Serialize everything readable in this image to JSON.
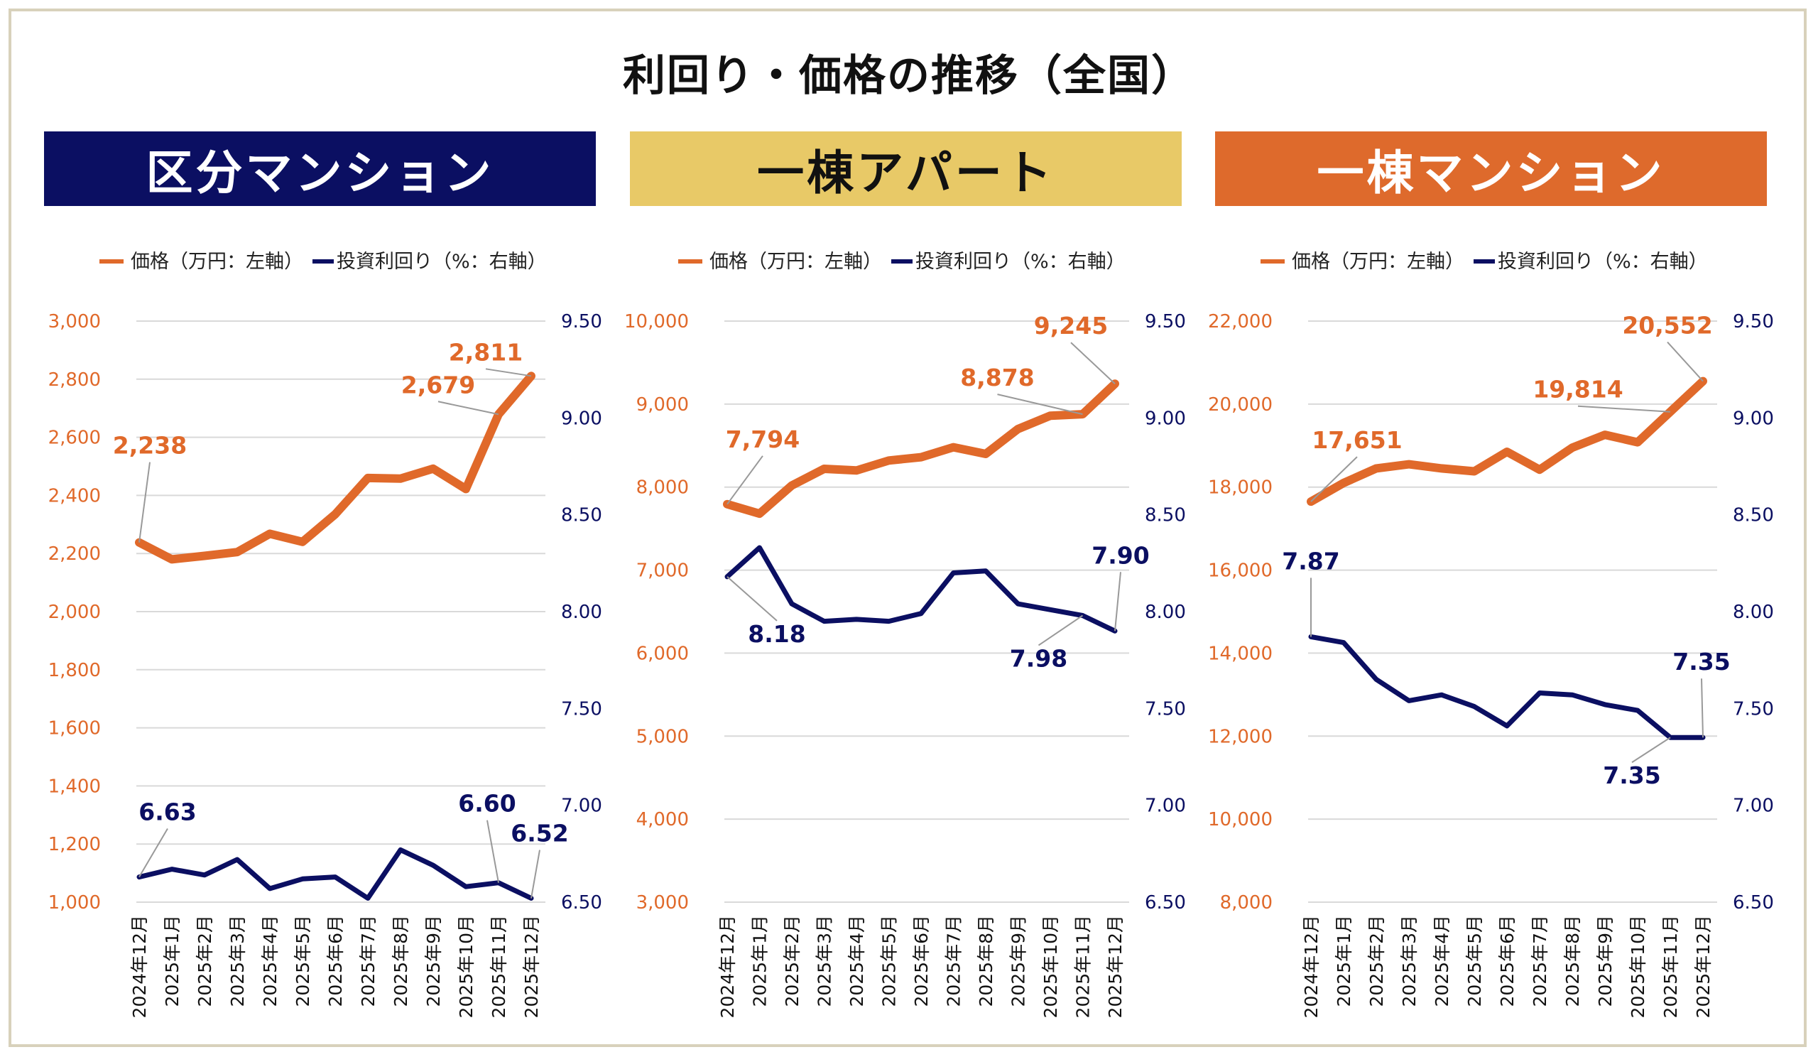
{
  "title": "利回り・価格の推移（全国）",
  "colors": {
    "price": "#E0692A",
    "yield": "#0B0F62",
    "grid": "#d9d9d9",
    "frame": "#d8d1bb"
  },
  "chart_data": [
    {
      "type": "line",
      "panel_title": "区分マンション",
      "banner_color": "#0B0F62",
      "banner_text_color": "#ffffff",
      "legend": [
        "価格（万円：左軸）",
        "投資利回り（%：右軸）"
      ],
      "categories": [
        "2024年12月",
        "2025年1月",
        "2025年2月",
        "2025年3月",
        "2025年4月",
        "2025年5月",
        "2025年6月",
        "2025年7月",
        "2025年8月",
        "2025年9月",
        "2025年10月",
        "2025年11月",
        "2025年12月"
      ],
      "left_axis": {
        "min": 1000,
        "max": 3000,
        "step": 200,
        "ticks": [
          "1,000",
          "1,200",
          "1,400",
          "1,600",
          "1,800",
          "2,000",
          "2,200",
          "2,400",
          "2,600",
          "2,800",
          "3,000"
        ]
      },
      "right_axis": {
        "min": 6.5,
        "max": 9.5,
        "step": 0.5,
        "ticks": [
          "6.50",
          "7.00",
          "7.50",
          "8.00",
          "8.50",
          "9.00",
          "9.50"
        ]
      },
      "series": [
        {
          "name": "価格（万円：左軸）",
          "axis": "left",
          "values": [
            2238,
            2180,
            2192,
            2205,
            2268,
            2240,
            2335,
            2460,
            2458,
            2492,
            2422,
            2679,
            2811
          ]
        },
        {
          "name": "投資利回り（%：右軸）",
          "axis": "right",
          "values": [
            6.63,
            6.67,
            6.64,
            6.72,
            6.57,
            6.62,
            6.63,
            6.52,
            6.77,
            6.69,
            6.58,
            6.6,
            6.52
          ]
        }
      ],
      "annotations": [
        {
          "series": 0,
          "index": 0,
          "text": "2,238",
          "dx": 15,
          "dy": -125
        },
        {
          "series": 0,
          "index": 11,
          "text": "2,679",
          "dx": -85,
          "dy": -30
        },
        {
          "series": 0,
          "index": 12,
          "text": "2,811",
          "dx": -64,
          "dy": -22
        },
        {
          "series": 1,
          "index": 0,
          "text": "6.63",
          "dx": 40,
          "dy": -80
        },
        {
          "series": 1,
          "index": 11,
          "text": "6.60",
          "dx": -16,
          "dy": -100
        },
        {
          "series": 1,
          "index": 12,
          "text": "6.52",
          "dx": 12,
          "dy": -80
        }
      ]
    },
    {
      "type": "line",
      "panel_title": "一棟アパート",
      "banner_color": "#E8C967",
      "banner_text_color": "#111111",
      "legend": [
        "価格（万円：左軸）",
        "投資利回り（%：右軸）"
      ],
      "categories": [
        "2024年12月",
        "2025年1月",
        "2025年2月",
        "2025年3月",
        "2025年4月",
        "2025年5月",
        "2025年6月",
        "2025年7月",
        "2025年8月",
        "2025年9月",
        "2025年10月",
        "2025年11月",
        "2025年12月"
      ],
      "left_axis": {
        "min": 3000,
        "max": 10000,
        "step": 1000,
        "ticks": [
          "3,000",
          "4,000",
          "5,000",
          "6,000",
          "7,000",
          "8,000",
          "9,000",
          "10,000"
        ]
      },
      "right_axis": {
        "min": 6.5,
        "max": 9.5,
        "step": 0.5,
        "ticks": [
          "6.50",
          "7.00",
          "7.50",
          "8.00",
          "8.50",
          "9.00",
          "9.50"
        ]
      },
      "series": [
        {
          "name": "価格（万円：左軸）",
          "axis": "left",
          "values": [
            7794,
            7680,
            8020,
            8220,
            8200,
            8320,
            8360,
            8480,
            8400,
            8700,
            8860,
            8878,
            9245
          ]
        },
        {
          "name": "投資利回り（%：右軸）",
          "axis": "right",
          "values": [
            8.18,
            8.33,
            8.04,
            7.95,
            7.96,
            7.95,
            7.99,
            8.2,
            8.21,
            8.04,
            8.01,
            7.98,
            7.9
          ]
        }
      ],
      "annotations": [
        {
          "series": 0,
          "index": 0,
          "text": "7,794",
          "dx": 50,
          "dy": -80
        },
        {
          "series": 0,
          "index": 11,
          "text": "8,878",
          "dx": -120,
          "dy": -40
        },
        {
          "series": 0,
          "index": 12,
          "text": "9,245",
          "dx": -62,
          "dy": -70
        },
        {
          "series": 1,
          "index": 0,
          "text": "8.18",
          "dx": 70,
          "dy": 92
        },
        {
          "series": 1,
          "index": 11,
          "text": "7.98",
          "dx": -62,
          "dy": 72
        },
        {
          "series": 1,
          "index": 12,
          "text": "7.90",
          "dx": 8,
          "dy": -95
        }
      ]
    },
    {
      "type": "line",
      "panel_title": "一棟マンション",
      "banner_color": "#DE6A2C",
      "banner_text_color": "#ffffff",
      "legend": [
        "価格（万円：左軸）",
        "投資利回り（%：右軸）"
      ],
      "categories": [
        "2024年12月",
        "2025年1月",
        "2025年2月",
        "2025年3月",
        "2025年4月",
        "2025年5月",
        "2025年6月",
        "2025年7月",
        "2025年8月",
        "2025年9月",
        "2025年10月",
        "2025年11月",
        "2025年12月"
      ],
      "left_axis": {
        "min": 8000,
        "max": 22000,
        "step": 2000,
        "ticks": [
          "8,000",
          "10,000",
          "12,000",
          "14,000",
          "16,000",
          "18,000",
          "20,000",
          "22,000"
        ]
      },
      "right_axis": {
        "min": 6.5,
        "max": 9.5,
        "step": 0.5,
        "ticks": [
          "6.50",
          "7.00",
          "7.50",
          "8.00",
          "8.50",
          "9.00",
          "9.50"
        ]
      },
      "series": [
        {
          "name": "価格（万円：左軸）",
          "axis": "left",
          "values": [
            17651,
            18100,
            18450,
            18550,
            18450,
            18380,
            18850,
            18420,
            18950,
            19260,
            19080,
            19814,
            20552
          ]
        },
        {
          "name": "投資利回り（%：右軸）",
          "axis": "right",
          "values": [
            7.87,
            7.84,
            7.65,
            7.54,
            7.57,
            7.51,
            7.41,
            7.58,
            7.57,
            7.52,
            7.49,
            7.35,
            7.35
          ]
        }
      ],
      "annotations": [
        {
          "series": 0,
          "index": 0,
          "text": "17,651",
          "dx": 65,
          "dy": -75
        },
        {
          "series": 0,
          "index": 11,
          "text": "19,814",
          "dx": -130,
          "dy": -20
        },
        {
          "series": 0,
          "index": 12,
          "text": "20,552",
          "dx": -50,
          "dy": -67
        },
        {
          "series": 1,
          "index": 0,
          "text": "7.87",
          "dx": 0,
          "dy": -95
        },
        {
          "series": 1,
          "index": 11,
          "text": "7.35",
          "dx": -54,
          "dy": 65
        },
        {
          "series": 1,
          "index": 12,
          "text": "7.35",
          "dx": -2,
          "dy": -95
        }
      ]
    }
  ]
}
